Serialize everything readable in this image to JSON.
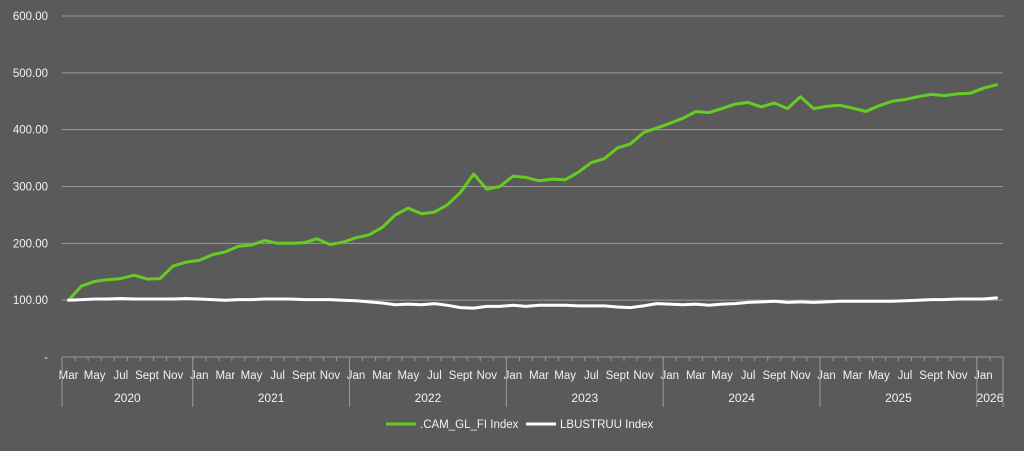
{
  "chart_data": {
    "type": "line",
    "title": "",
    "xlabel": "",
    "ylabel": "",
    "ylim": [
      0,
      600
    ],
    "y_ticks": [
      {
        "value": 0,
        "label": "-"
      },
      {
        "value": 100,
        "label": "100.00"
      },
      {
        "value": 200,
        "label": "200.00"
      },
      {
        "value": 300,
        "label": "300.00"
      },
      {
        "value": 400,
        "label": "400.00"
      },
      {
        "value": 500,
        "label": "500.00"
      },
      {
        "value": 600,
        "label": "600.00"
      }
    ],
    "grid": true,
    "legend_position": "bottom",
    "x": [
      "2020-03",
      "2020-04",
      "2020-05",
      "2020-06",
      "2020-07",
      "2020-08",
      "2020-09",
      "2020-10",
      "2020-11",
      "2020-12",
      "2021-01",
      "2021-02",
      "2021-03",
      "2021-04",
      "2021-05",
      "2021-06",
      "2021-07",
      "2021-08",
      "2021-09",
      "2021-10",
      "2021-11",
      "2021-12",
      "2022-01",
      "2022-02",
      "2022-03",
      "2022-04",
      "2022-05",
      "2022-06",
      "2022-07",
      "2022-08",
      "2022-09",
      "2022-10",
      "2022-11",
      "2022-12",
      "2023-01",
      "2023-02",
      "2023-03",
      "2023-04",
      "2023-05",
      "2023-06",
      "2023-07",
      "2023-08",
      "2023-09",
      "2023-10",
      "2023-11",
      "2023-12",
      "2024-01",
      "2024-02",
      "2024-03",
      "2024-04",
      "2024-05",
      "2024-06",
      "2024-07",
      "2024-08",
      "2024-09",
      "2024-10",
      "2024-11",
      "2024-12",
      "2025-01",
      "2025-02",
      "2025-03",
      "2025-04",
      "2025-05",
      "2025-06",
      "2025-07",
      "2025-08",
      "2025-09",
      "2025-10",
      "2025-11",
      "2025-12",
      "2026-01",
      "2026-02"
    ],
    "x_tick_labels": [
      {
        "x": "2020-03",
        "label": "Mar"
      },
      {
        "x": "2020-05",
        "label": "May"
      },
      {
        "x": "2020-07",
        "label": "Jul"
      },
      {
        "x": "2020-09",
        "label": "Sept"
      },
      {
        "x": "2020-11",
        "label": "Nov"
      },
      {
        "x": "2021-01",
        "label": "Jan"
      },
      {
        "x": "2021-03",
        "label": "Mar"
      },
      {
        "x": "2021-05",
        "label": "May"
      },
      {
        "x": "2021-07",
        "label": "Jul"
      },
      {
        "x": "2021-09",
        "label": "Sept"
      },
      {
        "x": "2021-11",
        "label": "Nov"
      },
      {
        "x": "2022-01",
        "label": "Jan"
      },
      {
        "x": "2022-03",
        "label": "Mar"
      },
      {
        "x": "2022-05",
        "label": "May"
      },
      {
        "x": "2022-07",
        "label": "Jul"
      },
      {
        "x": "2022-09",
        "label": "Sept"
      },
      {
        "x": "2022-11",
        "label": "Nov"
      },
      {
        "x": "2023-01",
        "label": "Jan"
      },
      {
        "x": "2023-03",
        "label": "Mar"
      },
      {
        "x": "2023-05",
        "label": "May"
      },
      {
        "x": "2023-07",
        "label": "Jul"
      },
      {
        "x": "2023-09",
        "label": "Sept"
      },
      {
        "x": "2023-11",
        "label": "Nov"
      },
      {
        "x": "2024-01",
        "label": "Jan"
      },
      {
        "x": "2024-03",
        "label": "Mar"
      },
      {
        "x": "2024-05",
        "label": "May"
      },
      {
        "x": "2024-07",
        "label": "Jul"
      },
      {
        "x": "2024-09",
        "label": "Sept"
      },
      {
        "x": "2024-11",
        "label": "Nov"
      },
      {
        "x": "2025-01",
        "label": "Jan"
      },
      {
        "x": "2025-03",
        "label": "Mar"
      },
      {
        "x": "2025-05",
        "label": "May"
      },
      {
        "x": "2025-07",
        "label": "Jul"
      },
      {
        "x": "2025-09",
        "label": "Sept"
      },
      {
        "x": "2025-11",
        "label": "Nov"
      },
      {
        "x": "2026-01",
        "label": "Jan"
      }
    ],
    "year_groups": [
      {
        "label": "2020",
        "start": "2020-03",
        "end": "2020-12"
      },
      {
        "label": "2021",
        "start": "2021-01",
        "end": "2021-12"
      },
      {
        "label": "2022",
        "start": "2022-01",
        "end": "2022-12"
      },
      {
        "label": "2023",
        "start": "2023-01",
        "end": "2023-12"
      },
      {
        "label": "2024",
        "start": "2024-01",
        "end": "2024-12"
      },
      {
        "label": "2025",
        "start": "2025-01",
        "end": "2025-12"
      },
      {
        "label": "2026",
        "start": "2026-01",
        "end": "2026-02"
      }
    ],
    "series": [
      {
        "name": ".CAM_GL_FI Index",
        "color": "#66cc22",
        "values": [
          100,
          125,
          133,
          136,
          138,
          144,
          137,
          138,
          160,
          167,
          170,
          180,
          185,
          195,
          197,
          205,
          200,
          200,
          201,
          208,
          198,
          202,
          210,
          215,
          228,
          250,
          262,
          252,
          255,
          268,
          290,
          322,
          295,
          300,
          318,
          316,
          310,
          313,
          312,
          325,
          342,
          349,
          368,
          375,
          395,
          403,
          411,
          420,
          432,
          430,
          437,
          445,
          448,
          440,
          447,
          437,
          458,
          437,
          441,
          443,
          438,
          432,
          442,
          450,
          453,
          458,
          462,
          460,
          463,
          464,
          473,
          479
        ]
      },
      {
        "name": "LBUSTRUU Index",
        "color": "#ffffff",
        "values": [
          100,
          101,
          102,
          102,
          103,
          102,
          102,
          102,
          102,
          103,
          102,
          101,
          100,
          101,
          101,
          102,
          102,
          102,
          101,
          101,
          101,
          100,
          99,
          97,
          95,
          92,
          93,
          92,
          94,
          91,
          87,
          86,
          89,
          89,
          91,
          89,
          91,
          91,
          91,
          90,
          90,
          90,
          88,
          87,
          90,
          94,
          93,
          92,
          93,
          91,
          93,
          94,
          96,
          97,
          98,
          96,
          97,
          96,
          97,
          98,
          98,
          98,
          98,
          98,
          99,
          100,
          101,
          101,
          102,
          102,
          102,
          104
        ]
      }
    ]
  }
}
